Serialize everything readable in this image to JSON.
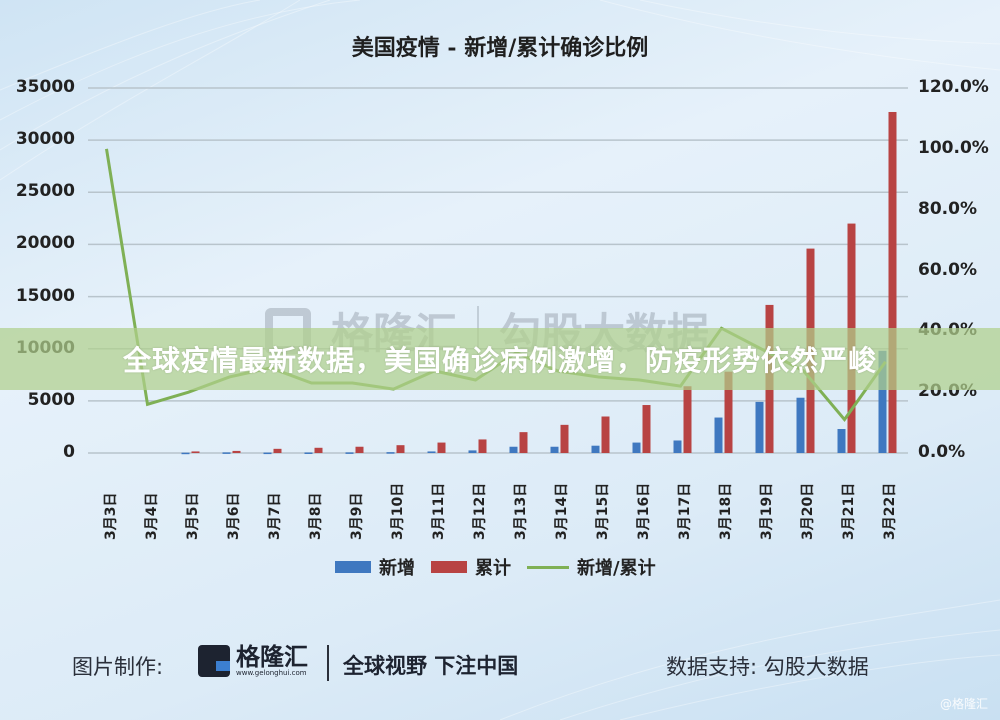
{
  "title": "美国疫情 - 新增/累计确诊比例",
  "banner": "全球疫情最新数据，美国确诊病例激增，防疫形势依然严峻",
  "watermark": {
    "brand": "格隆汇",
    "data": "勾股大数据"
  },
  "legend": {
    "new": "新增",
    "cumulative": "累计",
    "ratio": "新增/累计"
  },
  "colors": {
    "new": "#3f78c0",
    "cumulative": "#b84343",
    "ratio": "#7fb055",
    "grid": "#b8c4cc"
  },
  "footer": {
    "credit_label": "图片制作:",
    "brand_name": "格隆汇",
    "brand_url": "www.gelonghui.com",
    "slogan": "全球视野 下注中国",
    "data_support": "数据支持:  勾股大数据",
    "corner_mark": "@格隆汇"
  },
  "chart_data": {
    "type": "bar",
    "title": "美国疫情 - 新增/累计确诊比例",
    "xlabel": "",
    "ylabel": "",
    "categories": [
      "3月3日",
      "3月4日",
      "3月5日",
      "3月6日",
      "3月7日",
      "3月8日",
      "3月9日",
      "3月10日",
      "3月11日",
      "3月12日",
      "3月13日",
      "3月14日",
      "3月15日",
      "3月16日",
      "3月17日",
      "3月18日",
      "3月19日",
      "3月20日",
      "3月21日",
      "3月22日"
    ],
    "series": [
      {
        "name": "新增",
        "type": "bar",
        "axis": "left",
        "values": [
          0,
          0,
          30,
          60,
          40,
          50,
          60,
          80,
          150,
          250,
          600,
          600,
          700,
          1000,
          1200,
          3400,
          4900,
          5300,
          2300,
          9800
        ]
      },
      {
        "name": "累计",
        "type": "bar",
        "axis": "left",
        "values": [
          0,
          0,
          150,
          200,
          400,
          500,
          600,
          750,
          1000,
          1300,
          2000,
          2700,
          3500,
          4600,
          6400,
          7800,
          14200,
          19600,
          22000,
          32700
        ]
      },
      {
        "name": "新增/累计",
        "type": "line",
        "axis": "right",
        "unit": "%",
        "values": [
          100,
          16,
          20,
          25,
          28,
          23,
          23,
          21,
          27,
          24,
          33,
          27,
          25,
          24,
          22,
          41,
          34,
          27,
          11,
          30
        ]
      }
    ],
    "ylim": [
      0,
      35000
    ],
    "yticks": [
      "0",
      "5000",
      "10000",
      "15000",
      "20000",
      "25000",
      "30000",
      "35000"
    ],
    "y2lim": [
      0,
      120
    ],
    "y2ticks": [
      "0.0%",
      "20.0%",
      "40.0%",
      "60.0%",
      "80.0%",
      "100.0%",
      "120.0%"
    ],
    "grid": true,
    "legend_position": "bottom"
  }
}
